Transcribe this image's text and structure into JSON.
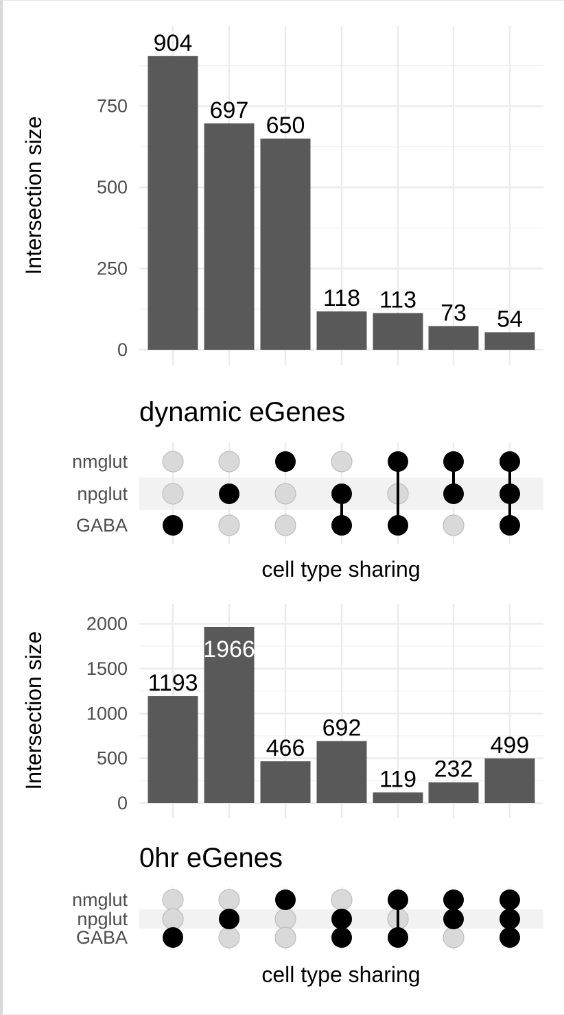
{
  "chart_data": [
    {
      "type": "bar",
      "title": "dynamic eGenes",
      "ylabel": "Intersection size",
      "xlabel": "cell type sharing",
      "ylim": [
        0,
        950
      ],
      "yticks": [
        0,
        250,
        500,
        750
      ],
      "values": [
        904,
        697,
        650,
        118,
        113,
        73,
        54
      ],
      "sets": [
        "nmglut",
        "npglut",
        "GABA"
      ],
      "membership": [
        [
          "GABA"
        ],
        [
          "npglut"
        ],
        [
          "nmglut"
        ],
        [
          "npglut",
          "GABA"
        ],
        [
          "nmglut",
          "GABA"
        ],
        [
          "nmglut",
          "npglut"
        ],
        [
          "nmglut",
          "npglut",
          "GABA"
        ]
      ],
      "grid": true
    },
    {
      "type": "bar",
      "title": "0hr eGenes",
      "ylabel": "Intersection size",
      "xlabel": "cell type sharing",
      "ylim": [
        0,
        2050
      ],
      "yticks": [
        0,
        500,
        1000,
        1500,
        2000
      ],
      "values": [
        1193,
        1966,
        466,
        692,
        119,
        232,
        499
      ],
      "sets": [
        "nmglut",
        "npglut",
        "GABA"
      ],
      "membership": [
        [
          "GABA"
        ],
        [
          "npglut"
        ],
        [
          "nmglut"
        ],
        [
          "npglut",
          "GABA"
        ],
        [
          "nmglut",
          "GABA"
        ],
        [
          "nmglut",
          "npglut"
        ],
        [
          "nmglut",
          "npglut",
          "GABA"
        ]
      ],
      "grid": true
    }
  ],
  "colors": {
    "bar": "#595959",
    "dot_on": "#000000",
    "dot_off": "#d9d9d9",
    "stripe": "#f2f2f2",
    "grid": "#ebebeb"
  }
}
